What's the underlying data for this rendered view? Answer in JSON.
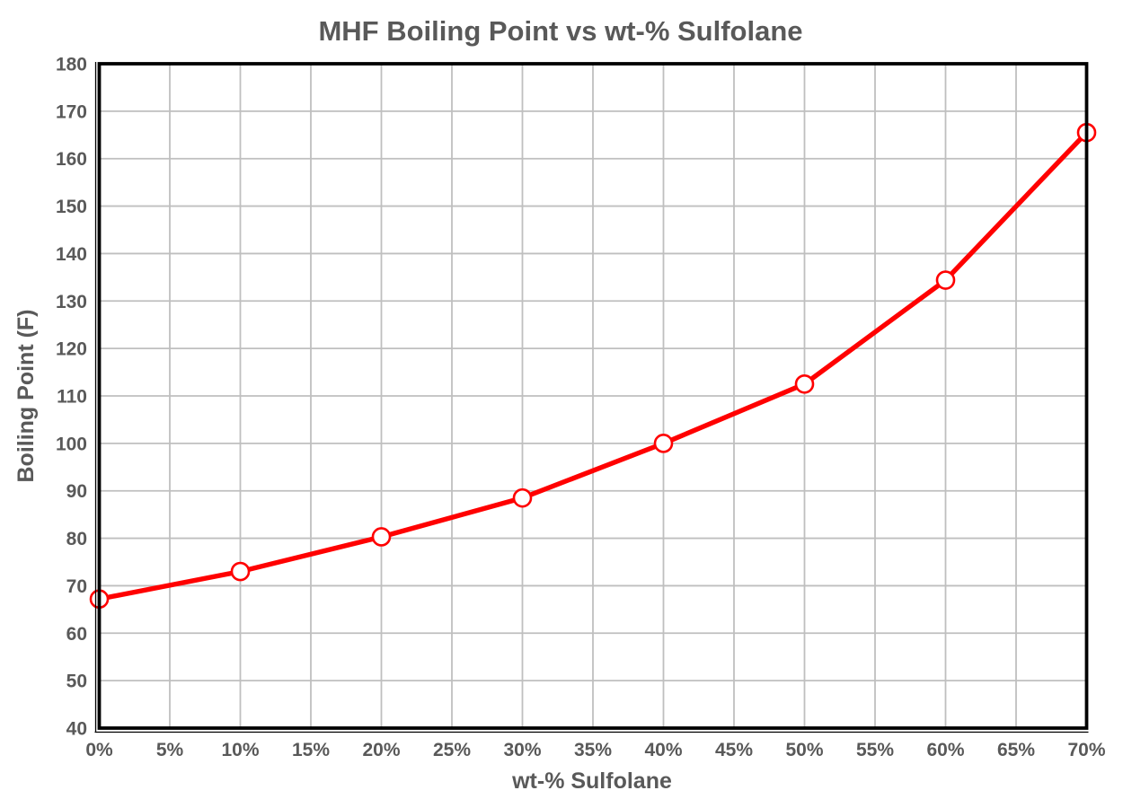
{
  "chart_data": {
    "type": "line",
    "title": "MHF Boiling Point vs wt-% Sulfolane",
    "xlabel": "wt-% Sulfolane",
    "ylabel": "Boiling Point (F)",
    "x": [
      0,
      10,
      20,
      30,
      40,
      50,
      60,
      70
    ],
    "values": [
      67.2,
      73.0,
      80.3,
      88.5,
      100.0,
      112.5,
      134.4,
      165.5
    ],
    "xlim": [
      0,
      70
    ],
    "ylim": [
      40,
      180
    ],
    "x_tick_step": 5,
    "y_tick_step": 10,
    "x_tick_labels": [
      "0%",
      "5%",
      "10%",
      "15%",
      "20%",
      "25%",
      "30%",
      "35%",
      "40%",
      "45%",
      "50%",
      "55%",
      "60%",
      "65%",
      "70%"
    ],
    "y_tick_labels": [
      "40",
      "50",
      "60",
      "70",
      "80",
      "90",
      "100",
      "110",
      "120",
      "130",
      "140",
      "150",
      "160",
      "170",
      "180"
    ],
    "grid": true,
    "legend": "none",
    "marker_shape": "circle",
    "colors": {
      "line": "#FF0000",
      "marker_fill": "#FFFFFF",
      "marker_stroke": "#FF0000",
      "gridline": "#BFBFBF",
      "text": "#595959",
      "plot_border": "#000000",
      "background": "#FFFFFF"
    }
  }
}
